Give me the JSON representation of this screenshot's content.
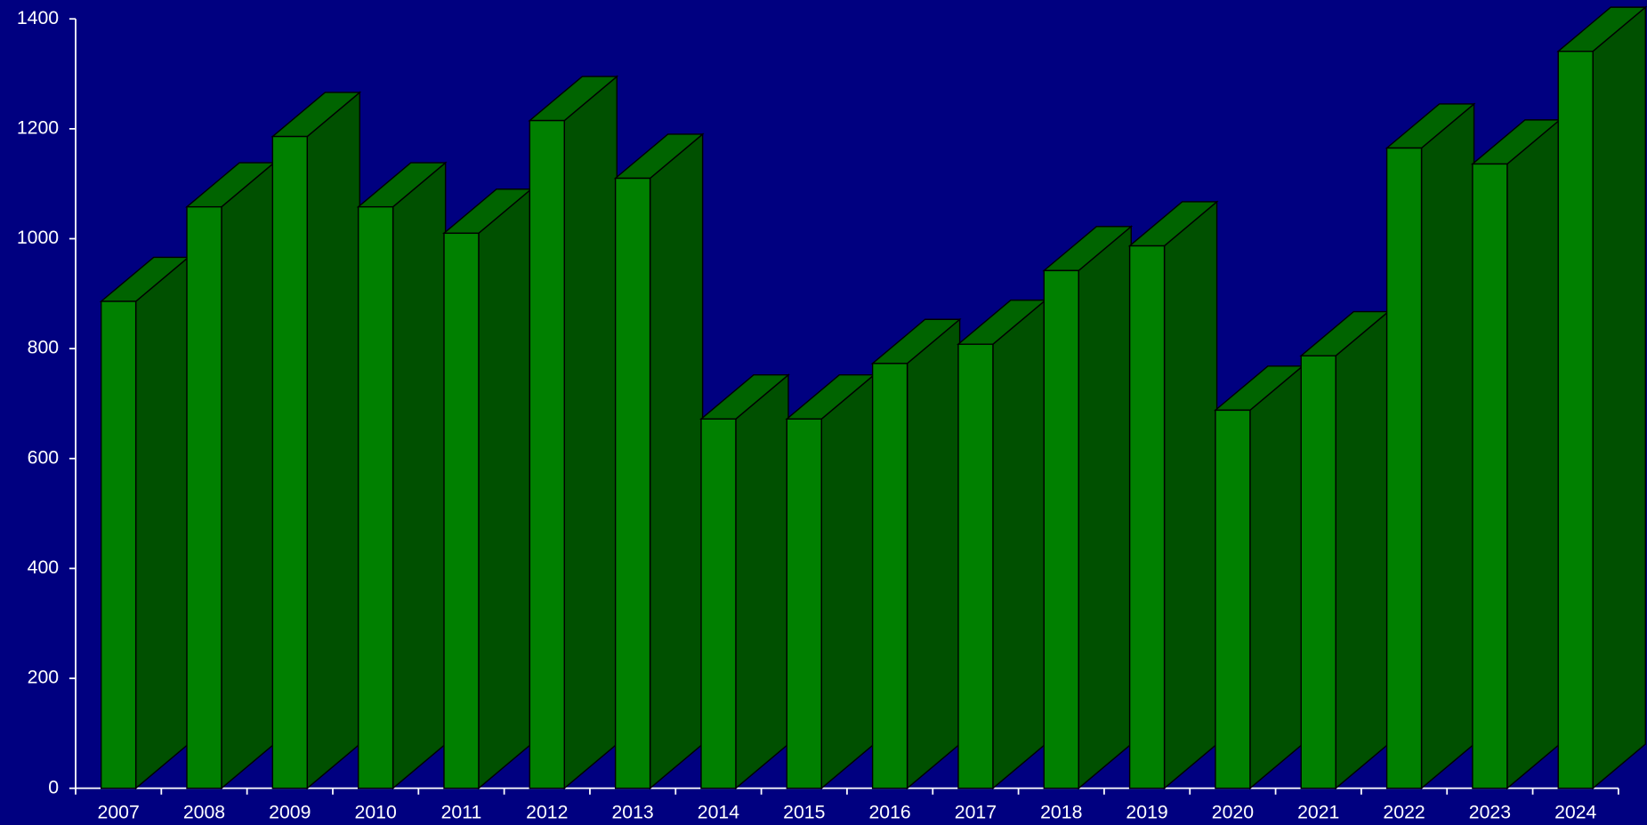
{
  "chart_data": {
    "type": "bar3d",
    "categories": [
      "2007",
      "2008",
      "2009",
      "2010",
      "2011",
      "2012",
      "2013",
      "2014",
      "2015",
      "2016",
      "2017",
      "2018",
      "2019",
      "2020",
      "2021",
      "2022",
      "2023",
      "2024"
    ],
    "values": [
      886,
      1058,
      1186,
      1058,
      1010,
      1215,
      1110,
      672,
      672,
      773,
      808,
      942,
      987,
      688,
      787,
      1165,
      1136,
      1341
    ],
    "color": "#008000",
    "ylim": [
      0,
      1400
    ],
    "yticks": [
      0,
      200,
      400,
      600,
      800,
      1000,
      1200,
      1400
    ]
  }
}
